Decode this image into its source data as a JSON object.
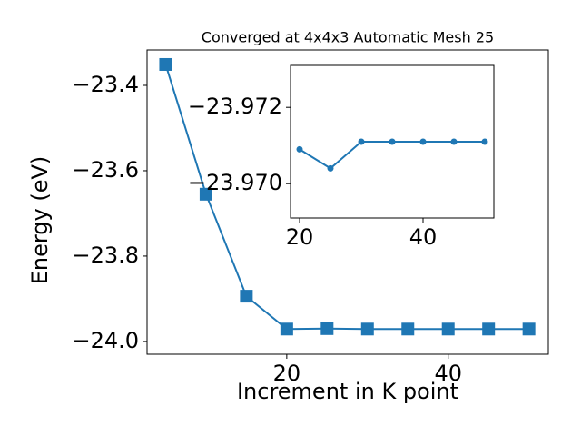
{
  "chart_data": [
    {
      "type": "line",
      "title": "Converged at 4x4x3 Automatic Mesh 25",
      "xlabel": "Increment in K point",
      "ylabel": "Energy (eV)",
      "x": [
        5,
        10,
        15,
        20,
        25,
        30,
        35,
        40,
        45,
        50
      ],
      "series": [
        {
          "values": [
            -23.351,
            -23.655,
            -23.894,
            -23.971,
            -23.97,
            -23.971,
            -23.971,
            -23.971,
            -23.971,
            -23.971
          ],
          "color": "#1f77b4",
          "marker": "square"
        }
      ],
      "xlim": [
        2.7,
        52.4
      ],
      "xticks": [
        20,
        40
      ],
      "ylim": [
        -24.03,
        -23.317
      ],
      "yticks": [
        {
          "value": -24.0,
          "label": "−24.0"
        },
        {
          "value": -23.8,
          "label": "−23.8"
        },
        {
          "value": -23.6,
          "label": "−23.6"
        },
        {
          "value": -23.4,
          "label": "−23.4"
        }
      ]
    },
    {
      "type": "line",
      "x": [
        20,
        25,
        30,
        35,
        40,
        45,
        50
      ],
      "series": [
        {
          "values": [
            -23.9709,
            -23.9704,
            -23.9711,
            -23.9711,
            -23.9711,
            -23.9711,
            -23.9711
          ],
          "color": "#1f77b4",
          "marker": "circle"
        }
      ],
      "xlim": [
        18.53,
        51.47
      ],
      "xticks": [
        20,
        40
      ],
      "ylim": [
        -23.9691,
        -23.9731
      ],
      "yticks": [
        {
          "value": -23.97,
          "label": "−23.970"
        },
        {
          "value": -23.972,
          "label": "−23.972"
        }
      ]
    }
  ]
}
